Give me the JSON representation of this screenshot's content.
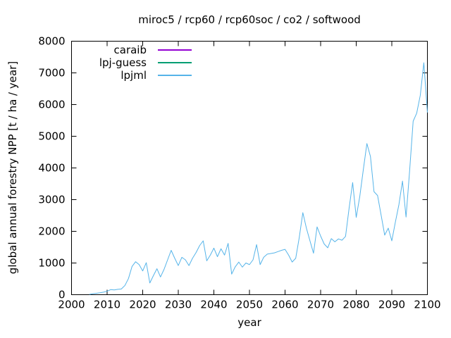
{
  "chart_data": {
    "type": "line",
    "title": "miroc5 / rcp60 / rcp60soc / co2 / softwood",
    "xlabel": "year",
    "ylabel": "global annual forestry NPP [t / ha / year]",
    "xlim": [
      2000,
      2100
    ],
    "ylim": [
      0,
      8000
    ],
    "xticks": [
      2000,
      2010,
      2020,
      2030,
      2040,
      2050,
      2060,
      2070,
      2080,
      2090,
      2100
    ],
    "yticks": [
      0,
      1000,
      2000,
      3000,
      4000,
      5000,
      6000,
      7000,
      8000
    ],
    "grid": false,
    "legend_position": "top-left-inside",
    "frame_color": "#000000",
    "series": [
      {
        "name": "caraib",
        "color": "#9400d3",
        "x_start": null,
        "x_step": 1,
        "values": []
      },
      {
        "name": "lpj-guess",
        "color": "#009e73",
        "x_start": null,
        "x_step": 1,
        "values": []
      },
      {
        "name": "lpjml",
        "color": "#56b4e9",
        "x_start": 2005,
        "x_step": 1,
        "values": [
          10,
          30,
          45,
          60,
          80,
          110,
          160,
          150,
          170,
          180,
          290,
          510,
          890,
          1040,
          950,
          750,
          1010,
          370,
          600,
          820,
          560,
          800,
          1100,
          1400,
          1150,
          920,
          1180,
          1100,
          920,
          1150,
          1330,
          1550,
          1700,
          1070,
          1250,
          1470,
          1200,
          1450,
          1250,
          1620,
          650,
          880,
          1030,
          870,
          1000,
          950,
          1100,
          1580,
          950,
          1180,
          1280,
          1300,
          1320,
          1360,
          1400,
          1430,
          1250,
          1030,
          1150,
          1810,
          2590,
          2100,
          1700,
          1310,
          2140,
          1850,
          1600,
          1480,
          1770,
          1670,
          1760,
          1720,
          1840,
          2730,
          3540,
          2440,
          3100,
          3950,
          4770,
          4360,
          3250,
          3130,
          2510,
          1880,
          2100,
          1700,
          2290,
          2845,
          3585,
          2450,
          3900,
          5475,
          5730,
          6290,
          7320,
          5750
        ]
      }
    ]
  }
}
